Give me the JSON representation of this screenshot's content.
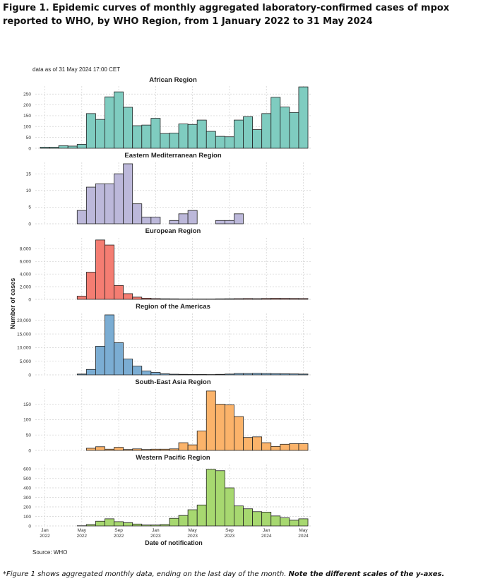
{
  "figure": {
    "title": "Figure 1. Epidemic curves of monthly aggregated laboratory-confirmed cases of mpox reported to WHO, by WHO Region, from 1 January 2022 to 31 May 2024",
    "as_of": "data as of 31 May 2024 17:00 CET",
    "y_axis_label": "Number of cases",
    "x_axis_label": "Date of notification",
    "source": "Source: WHO",
    "footnote_italic": "*Figure 1 shows aggregated monthly data, ending on the last day of the month. ",
    "footnote_bold": "Note the different scales of the y-axes."
  },
  "chart_data": {
    "type": "bar",
    "x_ticks": [
      {
        "month_index": 0,
        "line1": "Jan",
        "line2": "2022"
      },
      {
        "month_index": 4,
        "line1": "May",
        "line2": "2022"
      },
      {
        "month_index": 8,
        "line1": "Sep",
        "line2": "2022"
      },
      {
        "month_index": 12,
        "line1": "Jan",
        "line2": "2023"
      },
      {
        "month_index": 16,
        "line1": "May",
        "line2": "2023"
      },
      {
        "month_index": 20,
        "line1": "Sep",
        "line2": "2023"
      },
      {
        "month_index": 24,
        "line1": "Jan",
        "line2": "2024"
      },
      {
        "month_index": 28,
        "line1": "May",
        "line2": "2024"
      }
    ],
    "months": [
      "2022-01",
      "2022-02",
      "2022-03",
      "2022-04",
      "2022-05",
      "2022-06",
      "2022-07",
      "2022-08",
      "2022-09",
      "2022-10",
      "2022-11",
      "2022-12",
      "2023-01",
      "2023-02",
      "2023-03",
      "2023-04",
      "2023-05",
      "2023-06",
      "2023-07",
      "2023-08",
      "2023-09",
      "2023-10",
      "2023-11",
      "2023-12",
      "2024-01",
      "2024-02",
      "2024-03",
      "2024-04",
      "2024-05"
    ],
    "panels": [
      {
        "title": "African Region",
        "color": "#7fccc0",
        "ylim": [
          0,
          280
        ],
        "yticks": [
          {
            "value": 0,
            "label": "0"
          },
          {
            "value": 50,
            "label": "50"
          },
          {
            "value": 100,
            "label": "100"
          },
          {
            "value": 150,
            "label": "150"
          },
          {
            "value": 200,
            "label": "200"
          },
          {
            "value": 250,
            "label": "250"
          }
        ],
        "values": [
          5,
          5,
          12,
          10,
          18,
          160,
          133,
          237,
          260,
          189,
          104,
          107,
          138,
          68,
          70,
          112,
          110,
          130,
          78,
          55,
          53,
          130,
          146,
          86,
          160,
          235,
          190,
          165,
          283
        ]
      },
      {
        "title": "Eastern Mediterranean Region",
        "color": "#bcb8da",
        "ylim": [
          0,
          18
        ],
        "yticks": [
          {
            "value": 0,
            "label": "0"
          },
          {
            "value": 5,
            "label": "5"
          },
          {
            "value": 10,
            "label": "10"
          },
          {
            "value": 15,
            "label": "15"
          }
        ],
        "values": [
          0,
          0,
          0,
          0,
          4,
          11,
          12,
          12,
          15,
          18,
          6,
          2,
          2,
          0,
          1,
          3,
          4,
          0,
          0,
          1,
          1,
          3,
          0,
          0,
          0,
          0,
          0,
          0,
          0
        ]
      },
      {
        "title": "European Region",
        "color": "#f47d72",
        "ylim": [
          0,
          9500
        ],
        "yticks": [
          {
            "value": 0,
            "label": "0"
          },
          {
            "value": 2000,
            "label": "2,000"
          },
          {
            "value": 4000,
            "label": "4,000"
          },
          {
            "value": 6000,
            "label": "6,000"
          },
          {
            "value": 8000,
            "label": "8,000"
          }
        ],
        "values": [
          0,
          0,
          0,
          0,
          500,
          4300,
          9400,
          8600,
          2200,
          900,
          350,
          180,
          120,
          90,
          80,
          60,
          60,
          60,
          60,
          80,
          90,
          110,
          130,
          110,
          140,
          160,
          150,
          140,
          130
        ]
      },
      {
        "title": "Region of the Americas",
        "color": "#7badd3",
        "ylim": [
          0,
          22000
        ],
        "yticks": [
          {
            "value": 0,
            "label": "0"
          },
          {
            "value": 5000,
            "label": "5,000"
          },
          {
            "value": 10000,
            "label": "10,000"
          },
          {
            "value": 15000,
            "label": "15,000"
          },
          {
            "value": 20000,
            "label": "20,000"
          }
        ],
        "values": [
          0,
          0,
          0,
          0,
          300,
          2000,
          10500,
          22000,
          11800,
          5800,
          3200,
          1400,
          900,
          400,
          250,
          200,
          150,
          150,
          120,
          200,
          300,
          500,
          500,
          550,
          500,
          450,
          400,
          350,
          300
        ]
      },
      {
        "title": "South-East Asia Region",
        "color": "#fbb36a",
        "ylim": [
          0,
          195
        ],
        "yticks": [
          {
            "value": 0,
            "label": "0"
          },
          {
            "value": 50,
            "label": "50"
          },
          {
            "value": 100,
            "label": "100"
          },
          {
            "value": 150,
            "label": "150"
          }
        ],
        "values": [
          0,
          0,
          0,
          0,
          0,
          7,
          12,
          4,
          10,
          3,
          5,
          3,
          4,
          4,
          5,
          25,
          18,
          63,
          193,
          150,
          148,
          110,
          42,
          44,
          25,
          13,
          20,
          22,
          22
        ]
      },
      {
        "title": "Western Pacific Region",
        "color": "#a7d870",
        "ylim": [
          0,
          630
        ],
        "yticks": [
          {
            "value": 0,
            "label": "0"
          },
          {
            "value": 100,
            "label": "100"
          },
          {
            "value": 200,
            "label": "200"
          },
          {
            "value": 300,
            "label": "300"
          },
          {
            "value": 400,
            "label": "400"
          },
          {
            "value": 500,
            "label": "500"
          },
          {
            "value": 600,
            "label": "600"
          }
        ],
        "values": [
          0,
          0,
          0,
          0,
          2,
          15,
          50,
          75,
          45,
          35,
          20,
          10,
          10,
          15,
          80,
          110,
          170,
          220,
          595,
          580,
          400,
          210,
          180,
          150,
          145,
          105,
          85,
          60,
          75
        ]
      }
    ]
  }
}
